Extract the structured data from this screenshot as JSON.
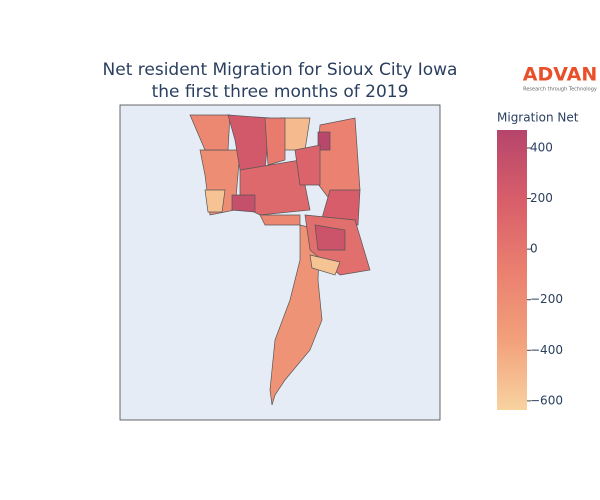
{
  "chart_data": {
    "type": "choropleth",
    "title": [
      "Net resident Migration for Sioux City Iowa",
      "the first three months of 2019"
    ],
    "logo": {
      "name": "ADVAN",
      "tagline": "Research through Technology"
    },
    "colorbar_title": "Migration Net",
    "values": [
      -250,
      -200,
      -150,
      250,
      -500,
      -100,
      200,
      100,
      350,
      -550,
      50,
      -550,
      450,
      -50,
      150,
      -150,
      300
    ],
    "zlim": [
      -636,
      471
    ],
    "zticks": [
      {
        "value": -600,
        "label": "−600"
      },
      {
        "value": -400,
        "label": "−400"
      },
      {
        "value": -200,
        "label": "−200"
      },
      0,
      200,
      400
    ],
    "colorscale": [
      "#f8d3a0",
      "#f2a07a",
      "#ea7f6f",
      "#d85e6a",
      "#b5456b"
    ],
    "background": "#e5ecf6"
  }
}
